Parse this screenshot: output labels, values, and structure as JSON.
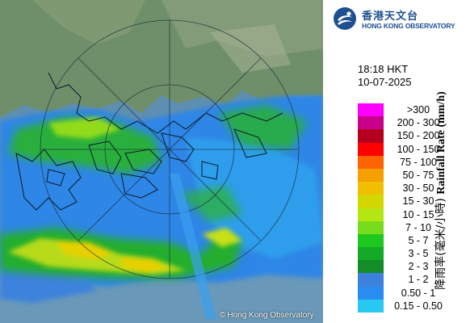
{
  "map": {
    "copyright": "Hong Kong Observatory",
    "copyright_symbol": "©"
  },
  "header": {
    "logo_icon": "hko-logo-icon",
    "org_name_zh": "香港天文台",
    "org_name_en": "HONG KONG OBSERVATORY",
    "time": "18:18 HKT",
    "date": "10-07-2025"
  },
  "legend": {
    "title_zh": "降雨率(毫米/小時)",
    "title_en": "Rainfall Rate (mm/h)",
    "items": [
      {
        "label": ">300",
        "color": "#ff00ff"
      },
      {
        "label": "200 - 300",
        "color": "#c8008c"
      },
      {
        "label": "150 - 200",
        "color": "#b4001e"
      },
      {
        "label": "100 - 150",
        "color": "#ff0000"
      },
      {
        "label": "75 - 100",
        "color": "#ff6400"
      },
      {
        "label": "50 - 75",
        "color": "#f5a000"
      },
      {
        "label": "30 - 50",
        "color": "#f0c000"
      },
      {
        "label": "15 - 30",
        "color": "#d4d600"
      },
      {
        "label": "10 - 15",
        "color": "#b4e614"
      },
      {
        "label": "7 - 10",
        "color": "#78dc1e"
      },
      {
        "label": "5 - 7",
        "color": "#1ec81e"
      },
      {
        "label": "3 - 5",
        "color": "#14aa28"
      },
      {
        "label": "2 - 3",
        "color": "#148c28"
      },
      {
        "label": "1 - 2",
        "color": "#3c82dc"
      },
      {
        "label": "0.50 - 1",
        "color": "#288cf0"
      },
      {
        "label": "0.15 - 0.50",
        "color": "#28c8f0"
      }
    ]
  }
}
